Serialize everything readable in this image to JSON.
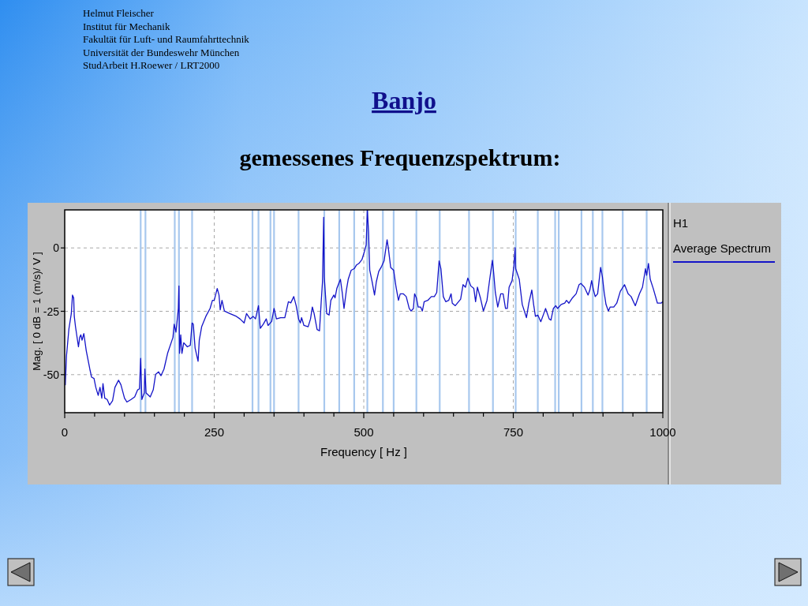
{
  "chart_data": {
    "type": "line",
    "title": "Banjo",
    "subtitle": "gemessenes Frequenzspektrum:",
    "xlabel": "Frequency [ Hz ]",
    "ylabel": "Mag. [ 0 dB = 1 (m/s)/ V ]",
    "legend_title": "H1",
    "annotations": [
      "Helmut Fleischer",
      "Institut für Mechanik",
      "Fakultät für Luft- und Raumfahrttechnik",
      "Universität der Bundeswehr München",
      "StudArbeit H.Roewer / LRT2000"
    ],
    "x": [
      1,
      3,
      7,
      11,
      13,
      15,
      16,
      18,
      23,
      25,
      27,
      29,
      32,
      36,
      42,
      45,
      49,
      52,
      56,
      59,
      62,
      64,
      67,
      71,
      75,
      80,
      84,
      90,
      94,
      100,
      104,
      111,
      117,
      122,
      125,
      127,
      129,
      133,
      134,
      136,
      143,
      148,
      152,
      157,
      161,
      166,
      172,
      181,
      183,
      186,
      190,
      191,
      192,
      194,
      196,
      199,
      205,
      210,
      213,
      215,
      218,
      223,
      225,
      229,
      236,
      243,
      247,
      250,
      255,
      258,
      260,
      263,
      267,
      276,
      287,
      293,
      300,
      304,
      310,
      315,
      319,
      324,
      327,
      332,
      337,
      340,
      346,
      350,
      354,
      361,
      368,
      374,
      378,
      383,
      387,
      391,
      394,
      396,
      400,
      407,
      411,
      414,
      417,
      422,
      426,
      429,
      431,
      433,
      434,
      438,
      442,
      445,
      450,
      452,
      455,
      461,
      464,
      467,
      471,
      474,
      479,
      484,
      488,
      492,
      497,
      501,
      504,
      506,
      508,
      510,
      514,
      518,
      521,
      525,
      530,
      534,
      539,
      541,
      545,
      550,
      554,
      558,
      561,
      566,
      571,
      576,
      579,
      583,
      585,
      588,
      591,
      595,
      598,
      601,
      607,
      613,
      618,
      622,
      626,
      629,
      633,
      637,
      642,
      646,
      648,
      653,
      662,
      666,
      670,
      674,
      679,
      684,
      687,
      690,
      695,
      700,
      706,
      710,
      715,
      717,
      720,
      724,
      729,
      733,
      737,
      740,
      743,
      748,
      751,
      753,
      754,
      760,
      765,
      772,
      776,
      781,
      784,
      787,
      791,
      796,
      801,
      804,
      810,
      813,
      817,
      821,
      824,
      830,
      836,
      839,
      843,
      849,
      855,
      860,
      863,
      869,
      875,
      878,
      881,
      884,
      887,
      891,
      896,
      899,
      902,
      905,
      909,
      912,
      918,
      923,
      929,
      936,
      942,
      947,
      954,
      961,
      966,
      971,
      973,
      976,
      979,
      984,
      991,
      997,
      1000
    ],
    "series": [
      {
        "name": "Average Spectrum",
        "color": "#1414c8",
        "values": [
          -54,
          -42.6,
          -32,
          -26,
          -18.6,
          -19.7,
          -27,
          -31,
          -39,
          -35.3,
          -34.3,
          -36.4,
          -33.8,
          -40.5,
          -47.8,
          -51,
          -51.5,
          -55,
          -58.2,
          -55,
          -59.3,
          -53.5,
          -59.3,
          -59.8,
          -62,
          -60.3,
          -55,
          -52.2,
          -54,
          -59.3,
          -60.8,
          -59.8,
          -58.8,
          -56,
          -55.6,
          -43.6,
          -59.8,
          -57.2,
          -47.8,
          -57.2,
          -58.8,
          -56,
          -49.9,
          -48.9,
          -50.4,
          -47.8,
          -41.6,
          -35.3,
          -30.1,
          -33.2,
          -23.9,
          -15,
          -41.6,
          -34.3,
          -41.6,
          -37.4,
          -39,
          -38.4,
          -29.6,
          -30.1,
          -39.5,
          -44.7,
          -36.4,
          -31.1,
          -27,
          -23.9,
          -20.7,
          -20.7,
          -16,
          -18.6,
          -24.4,
          -20.7,
          -24.9,
          -25.9,
          -27,
          -28,
          -29.6,
          -25.9,
          -28,
          -27,
          -28,
          -22.8,
          -31.7,
          -30.1,
          -28,
          -30.6,
          -29,
          -23.9,
          -28,
          -27.5,
          -27.5,
          -21.2,
          -21.7,
          -19.2,
          -22.8,
          -28,
          -29.6,
          -27.5,
          -30.6,
          -31.1,
          -28,
          -23.3,
          -25.9,
          -32.2,
          -32.7,
          -20.7,
          -13.4,
          12.1,
          -11.4,
          -25.9,
          -26.5,
          -20.7,
          -18.6,
          -19.7,
          -16,
          -12.4,
          -17.6,
          -23.9,
          -16.6,
          -12.4,
          -8.8,
          -8.2,
          -6.7,
          -6.1,
          -4.6,
          -1.5,
          1.1,
          15,
          6.4,
          -8.8,
          -13.4,
          -18.6,
          -13.4,
          -9.3,
          -7.2,
          -5.1,
          3.2,
          0.1,
          -7.7,
          -8.8,
          -15.5,
          -20.7,
          -18.1,
          -18.1,
          -19.2,
          -23.9,
          -24.9,
          -23.9,
          -18.1,
          -19.7,
          -23.3,
          -23.3,
          -24.9,
          -21.2,
          -20.7,
          -19.2,
          -19.2,
          -17.6,
          -5.1,
          -8.2,
          -19.2,
          -21.2,
          -20.7,
          -18.1,
          -21.8,
          -22.8,
          -20.2,
          -14.5,
          -15.5,
          -11.9,
          -15,
          -16,
          -21.2,
          -15.5,
          -19.7,
          -24.9,
          -20.7,
          -13.4,
          -4.9,
          -9.3,
          -17.6,
          -23.3,
          -18.1,
          -18.1,
          -23.9,
          -23.9,
          -15.5,
          -12.9,
          -7.2,
          0.1,
          -8.2,
          -12.4,
          -22.3,
          -27.5,
          -21.8,
          -16.6,
          -22.3,
          -27,
          -26.5,
          -29.1,
          -25.9,
          -23.9,
          -28,
          -28.5,
          -23.9,
          -22.8,
          -23.9,
          -22.3,
          -21.8,
          -20.7,
          -21.8,
          -19.7,
          -18.1,
          -14.5,
          -14,
          -15.5,
          -18.6,
          -16.6,
          -12.9,
          -16.6,
          -19.2,
          -18.1,
          -7.7,
          -11.4,
          -17.6,
          -22.3,
          -24.9,
          -23.3,
          -23.3,
          -21.8,
          -17.1,
          -14.5,
          -18.1,
          -19.2,
          -22.8,
          -18.1,
          -15.5,
          -8.2,
          -10.8,
          -6.1,
          -12.4,
          -16,
          -21.8,
          -21.8,
          -21.2
        ]
      }
    ],
    "xlim": [
      0,
      1000
    ],
    "ylim": [
      -65,
      15
    ],
    "xticks": [
      0,
      {
        "value": 50,
        "label": null
      },
      {
        "value": 100,
        "label": null
      },
      {
        "value": 150,
        "label": null
      },
      {
        "value": 200,
        "label": null
      },
      250,
      {
        "value": 300,
        "label": null
      },
      {
        "value": 350,
        "label": null
      },
      {
        "value": 400,
        "label": null
      },
      {
        "value": 450,
        "label": null
      },
      500,
      {
        "value": 550,
        "label": null
      },
      {
        "value": 600,
        "label": null
      },
      {
        "value": 650,
        "label": null
      },
      {
        "value": 700,
        "label": null
      },
      750,
      {
        "value": 800,
        "label": null
      },
      {
        "value": 850,
        "label": null
      },
      {
        "value": 900,
        "label": null
      },
      {
        "value": 950,
        "label": null
      },
      1000
    ],
    "yticks": [
      -50,
      -25,
      0
    ],
    "grid": true,
    "legend": "right",
    "ref_lines": [
      {
        "axis": "x",
        "value": 127,
        "color": "#a8c8ee"
      },
      {
        "axis": "x",
        "value": 135,
        "color": "#a8c8ee"
      },
      {
        "axis": "x",
        "value": 184,
        "color": "#a8c8ee"
      },
      {
        "axis": "x",
        "value": 191,
        "color": "#a8c8ee"
      },
      {
        "axis": "x",
        "value": 213,
        "color": "#a8c8ee"
      },
      {
        "axis": "x",
        "value": 314,
        "color": "#a8c8ee"
      },
      {
        "axis": "x",
        "value": 324,
        "color": "#a8c8ee"
      },
      {
        "axis": "x",
        "value": 344,
        "color": "#a8c8ee"
      },
      {
        "axis": "x",
        "value": 350,
        "color": "#a8c8ee"
      },
      {
        "axis": "x",
        "value": 391,
        "color": "#a8c8ee"
      },
      {
        "axis": "x",
        "value": 434,
        "color": "#a8c8ee"
      },
      {
        "axis": "x",
        "value": 459,
        "color": "#a8c8ee"
      },
      {
        "axis": "x",
        "value": 484,
        "color": "#a8c8ee"
      },
      {
        "axis": "x",
        "value": 506,
        "color": "#a8c8ee"
      },
      {
        "axis": "x",
        "value": 532,
        "color": "#a8c8ee"
      },
      {
        "axis": "x",
        "value": 550,
        "color": "#a8c8ee"
      },
      {
        "axis": "x",
        "value": 588,
        "color": "#a8c8ee"
      },
      {
        "axis": "x",
        "value": 627,
        "color": "#a8c8ee"
      },
      {
        "axis": "x",
        "value": 676,
        "color": "#a8c8ee"
      },
      {
        "axis": "x",
        "value": 716,
        "color": "#a8c8ee"
      },
      {
        "axis": "x",
        "value": 754,
        "color": "#a8c8ee"
      },
      {
        "axis": "x",
        "value": 791,
        "color": "#a8c8ee"
      },
      {
        "axis": "x",
        "value": 820,
        "color": "#a8c8ee"
      },
      {
        "axis": "x",
        "value": 826,
        "color": "#a8c8ee"
      },
      {
        "axis": "x",
        "value": 864,
        "color": "#a8c8ee"
      },
      {
        "axis": "x",
        "value": 883,
        "color": "#a8c8ee"
      },
      {
        "axis": "x",
        "value": 899,
        "color": "#a8c8ee"
      },
      {
        "axis": "x",
        "value": 933,
        "color": "#a8c8ee"
      },
      {
        "axis": "x",
        "value": 973,
        "color": "#a8c8ee"
      }
    ]
  }
}
